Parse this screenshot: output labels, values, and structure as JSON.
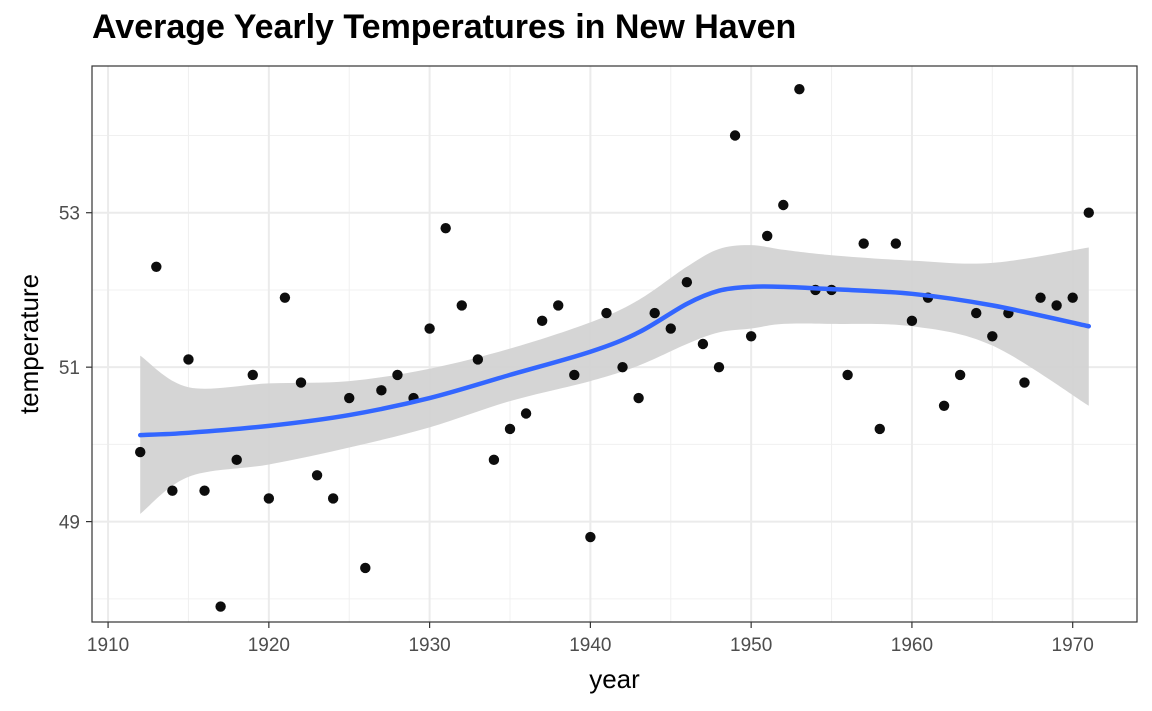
{
  "chart_data": {
    "type": "scatter",
    "title": "Average Yearly Temperatures in New Haven",
    "xlabel": "year",
    "ylabel": "temperature",
    "xlim": [
      1909,
      1974
    ],
    "ylim": [
      47.7,
      54.9
    ],
    "x_ticks": [
      1910,
      1920,
      1930,
      1940,
      1950,
      1960,
      1970
    ],
    "x_tick_labels": [
      "1910",
      "1920",
      "1930",
      "1940",
      "1950",
      "1960",
      "1970"
    ],
    "y_ticks": [
      49,
      51,
      53
    ],
    "y_tick_labels": [
      "49",
      "51",
      "53"
    ],
    "grid": true,
    "legend": "none",
    "points": [
      {
        "x": 1912,
        "y": 49.9
      },
      {
        "x": 1913,
        "y": 52.3
      },
      {
        "x": 1914,
        "y": 49.4
      },
      {
        "x": 1915,
        "y": 51.1
      },
      {
        "x": 1916,
        "y": 49.4
      },
      {
        "x": 1917,
        "y": 47.9
      },
      {
        "x": 1918,
        "y": 49.8
      },
      {
        "x": 1919,
        "y": 50.9
      },
      {
        "x": 1920,
        "y": 49.3
      },
      {
        "x": 1921,
        "y": 51.9
      },
      {
        "x": 1922,
        "y": 50.8
      },
      {
        "x": 1923,
        "y": 49.6
      },
      {
        "x": 1924,
        "y": 49.3
      },
      {
        "x": 1925,
        "y": 50.6
      },
      {
        "x": 1926,
        "y": 48.4
      },
      {
        "x": 1927,
        "y": 50.7
      },
      {
        "x": 1928,
        "y": 50.9
      },
      {
        "x": 1929,
        "y": 50.6
      },
      {
        "x": 1930,
        "y": 51.5
      },
      {
        "x": 1931,
        "y": 52.8
      },
      {
        "x": 1932,
        "y": 51.8
      },
      {
        "x": 1933,
        "y": 51.1
      },
      {
        "x": 1934,
        "y": 49.8
      },
      {
        "x": 1935,
        "y": 50.2
      },
      {
        "x": 1936,
        "y": 50.4
      },
      {
        "x": 1937,
        "y": 51.6
      },
      {
        "x": 1938,
        "y": 51.8
      },
      {
        "x": 1939,
        "y": 50.9
      },
      {
        "x": 1940,
        "y": 48.8
      },
      {
        "x": 1941,
        "y": 51.7
      },
      {
        "x": 1942,
        "y": 51.0
      },
      {
        "x": 1943,
        "y": 50.6
      },
      {
        "x": 1944,
        "y": 51.7
      },
      {
        "x": 1945,
        "y": 51.5
      },
      {
        "x": 1946,
        "y": 52.1
      },
      {
        "x": 1947,
        "y": 51.3
      },
      {
        "x": 1948,
        "y": 51.0
      },
      {
        "x": 1949,
        "y": 54.0
      },
      {
        "x": 1950,
        "y": 51.4
      },
      {
        "x": 1951,
        "y": 52.7
      },
      {
        "x": 1952,
        "y": 53.1
      },
      {
        "x": 1953,
        "y": 54.6
      },
      {
        "x": 1954,
        "y": 52.0
      },
      {
        "x": 1955,
        "y": 52.0
      },
      {
        "x": 1956,
        "y": 50.9
      },
      {
        "x": 1957,
        "y": 52.6
      },
      {
        "x": 1958,
        "y": 50.2
      },
      {
        "x": 1959,
        "y": 52.6
      },
      {
        "x": 1960,
        "y": 51.6
      },
      {
        "x": 1961,
        "y": 51.9
      },
      {
        "x": 1962,
        "y": 50.5
      },
      {
        "x": 1963,
        "y": 50.9
      },
      {
        "x": 1964,
        "y": 51.7
      },
      {
        "x": 1965,
        "y": 51.4
      },
      {
        "x": 1966,
        "y": 51.7
      },
      {
        "x": 1967,
        "y": 50.8
      },
      {
        "x": 1968,
        "y": 51.9
      },
      {
        "x": 1969,
        "y": 51.8
      },
      {
        "x": 1970,
        "y": 51.9
      },
      {
        "x": 1971,
        "y": 53.0
      }
    ],
    "smooth": {
      "color": "#3366ff",
      "band_color": "#d3d3d3",
      "x": [
        1912,
        1915,
        1920,
        1925,
        1930,
        1935,
        1940,
        1943,
        1946,
        1948,
        1950,
        1952,
        1955,
        1960,
        1965,
        1971
      ],
      "y": [
        50.12,
        50.15,
        50.24,
        50.38,
        50.6,
        50.9,
        51.2,
        51.45,
        51.82,
        51.99,
        52.04,
        52.04,
        52.01,
        51.95,
        51.8,
        51.53
      ],
      "lower": [
        49.1,
        49.58,
        49.74,
        49.96,
        50.22,
        50.56,
        50.82,
        51.02,
        51.3,
        51.45,
        51.5,
        51.56,
        51.56,
        51.53,
        51.28,
        50.5
      ],
      "upper": [
        51.15,
        50.74,
        50.79,
        50.82,
        50.98,
        51.24,
        51.58,
        51.87,
        52.3,
        52.53,
        52.58,
        52.52,
        52.45,
        52.38,
        52.35,
        52.55
      ]
    }
  }
}
